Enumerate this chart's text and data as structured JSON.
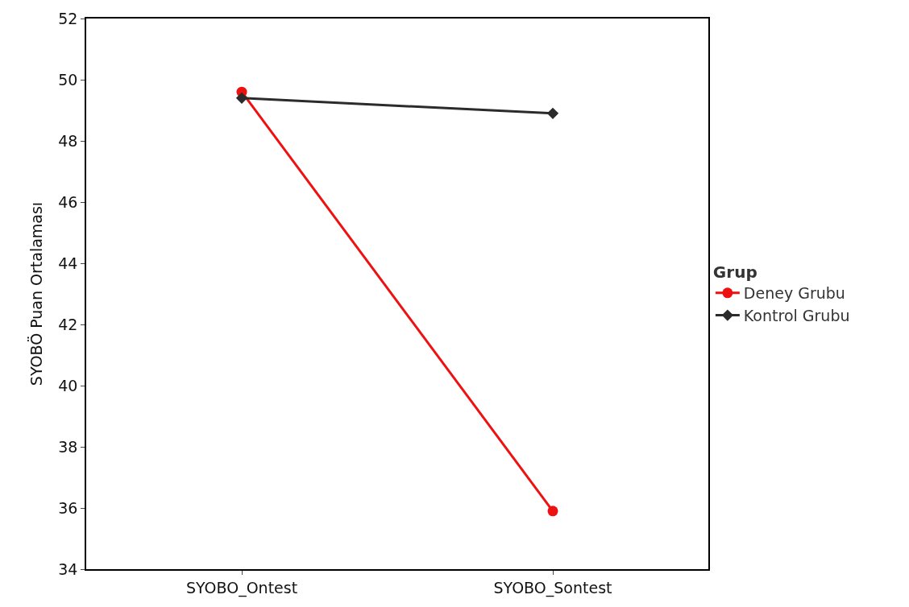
{
  "chart_data": {
    "type": "line",
    "ylabel": "SYOBÖ Puan Ortalaması",
    "legend_title": "Grup",
    "categories": [
      "SYOBO_Ontest",
      "SYOBO_Sontest"
    ],
    "series": [
      {
        "name": "Deney Grubu",
        "color": "#ee1111",
        "values": [
          49.6,
          35.9
        ],
        "marker": "circle"
      },
      {
        "name": "Kontrol Grubu",
        "color": "#2b2b2b",
        "values": [
          49.4,
          48.9
        ],
        "marker": "diamond"
      }
    ],
    "ylim": [
      34,
      52
    ],
    "yticks": [
      34,
      36,
      38,
      40,
      42,
      44,
      46,
      48,
      50,
      52
    ],
    "legend": "right",
    "line_style": "solid"
  }
}
